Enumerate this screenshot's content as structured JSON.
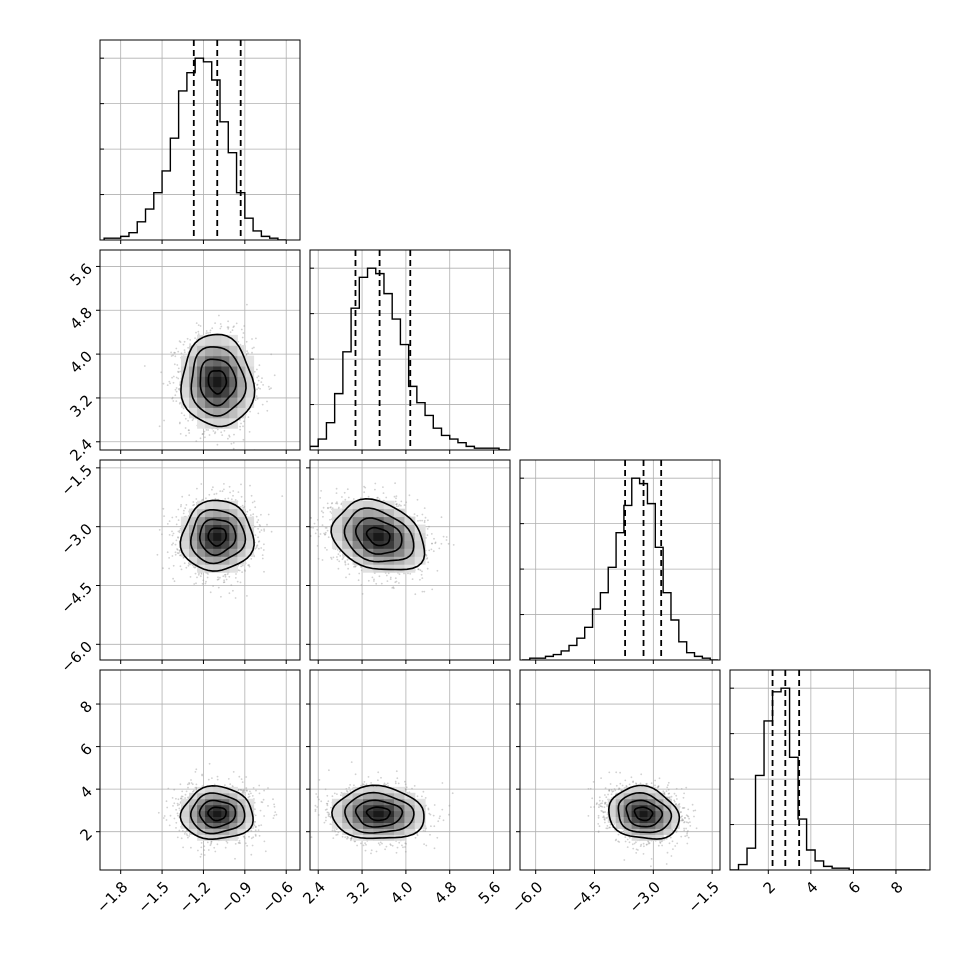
{
  "chart_data": {
    "type": "corner",
    "parameters": [
      {
        "range": [
          -1.95,
          -0.5
        ],
        "ticks": [
          -1.8,
          -1.5,
          -1.2,
          -0.9,
          -0.6
        ],
        "tick_labels": [
          "−1.8",
          "−1.5",
          "−1.2",
          "−0.9",
          "−0.6"
        ],
        "quantiles": [
          -1.27,
          -1.1,
          -0.93
        ],
        "hist_bins": [
          -1.92,
          -1.86,
          -1.8,
          -1.74,
          -1.68,
          -1.62,
          -1.56,
          -1.5,
          -1.44,
          -1.38,
          -1.32,
          -1.26,
          -1.2,
          -1.14,
          -1.08,
          -1.02,
          -0.96,
          -0.9,
          -0.84,
          -0.78,
          -0.72,
          -0.66,
          -0.6
        ],
        "hist_density": [
          0.01,
          0.01,
          0.02,
          0.04,
          0.1,
          0.17,
          0.26,
          0.38,
          0.56,
          0.82,
          0.92,
          1.0,
          0.98,
          0.88,
          0.65,
          0.48,
          0.26,
          0.12,
          0.05,
          0.02,
          0.01,
          0.0
        ],
        "center": -1.1,
        "sigma": 0.13
      },
      {
        "range": [
          2.25,
          5.9
        ],
        "ticks": [
          2.4,
          3.2,
          4.0,
          4.8,
          5.6
        ],
        "tick_labels": [
          "2.4",
          "3.2",
          "4.0",
          "4.8",
          "5.6"
        ],
        "quantiles": [
          3.08,
          3.52,
          4.08
        ],
        "hist_bins": [
          2.25,
          2.4,
          2.55,
          2.7,
          2.85,
          3.0,
          3.15,
          3.3,
          3.45,
          3.6,
          3.75,
          3.9,
          4.05,
          4.2,
          4.35,
          4.5,
          4.65,
          4.8,
          4.95,
          5.1,
          5.25,
          5.4,
          5.55,
          5.7,
          5.85
        ],
        "hist_density": [
          0.02,
          0.06,
          0.15,
          0.31,
          0.54,
          0.78,
          0.95,
          1.0,
          0.97,
          0.86,
          0.72,
          0.58,
          0.35,
          0.26,
          0.19,
          0.12,
          0.08,
          0.06,
          0.04,
          0.02,
          0.01,
          0.01,
          0.01,
          0.0
        ],
        "center": 3.5,
        "sigma": 0.42
      },
      {
        "range": [
          -6.4,
          -1.3
        ],
        "ticks": [
          -6.0,
          -4.5,
          -3.0,
          -1.5
        ],
        "tick_labels": [
          "−6.0",
          "−4.5",
          "−3.0",
          "−1.5"
        ],
        "quantiles": [
          -3.72,
          -3.25,
          -2.8
        ],
        "hist_bins": [
          -6.35,
          -6.15,
          -5.95,
          -5.75,
          -5.55,
          -5.35,
          -5.15,
          -4.95,
          -4.75,
          -4.55,
          -4.35,
          -4.15,
          -3.95,
          -3.75,
          -3.55,
          -3.35,
          -3.15,
          -2.95,
          -2.75,
          -2.55,
          -2.35,
          -2.15,
          -1.95,
          -1.75,
          -1.55,
          -1.35
        ],
        "hist_density": [
          0.0,
          0.01,
          0.01,
          0.02,
          0.03,
          0.05,
          0.08,
          0.12,
          0.18,
          0.28,
          0.37,
          0.51,
          0.7,
          0.85,
          1.0,
          0.97,
          0.86,
          0.62,
          0.37,
          0.22,
          0.1,
          0.04,
          0.02,
          0.01,
          0.0
        ],
        "center": -3.25,
        "sigma": 0.45
      },
      {
        "range": [
          0.2,
          9.6
        ],
        "ticks": [
          2,
          4,
          6,
          8
        ],
        "tick_labels": [
          "2",
          "4",
          "6",
          "8"
        ],
        "quantiles": [
          2.2,
          2.8,
          3.45
        ],
        "hist_bins": [
          0.2,
          0.6,
          1.0,
          1.4,
          1.8,
          2.2,
          2.6,
          3.0,
          3.4,
          3.8,
          4.2,
          4.6,
          5.0,
          5.4,
          5.8,
          6.2,
          6.6,
          7.0,
          7.4,
          7.8,
          8.2,
          8.6,
          9.0,
          9.4
        ],
        "hist_density": [
          0.0,
          0.03,
          0.12,
          0.52,
          0.82,
          0.98,
          1.0,
          0.62,
          0.28,
          0.11,
          0.05,
          0.02,
          0.01,
          0.01,
          0.0,
          0.0,
          0.0,
          0.0,
          0.0,
          0.0,
          0.0,
          0.0,
          0.0
        ],
        "center": 2.85,
        "sigma": 0.62
      }
    ],
    "correlations": [
      [
        1.0,
        -0.05,
        0.03,
        0.0
      ],
      [
        -0.05,
        1.0,
        -0.25,
        -0.05
      ],
      [
        0.03,
        -0.25,
        1.0,
        -0.15
      ],
      [
        0.0,
        -0.05,
        -0.15,
        1.0
      ]
    ],
    "contour_sigma_levels": [
      0.5,
      1.0,
      1.5,
      2.0
    ],
    "grid": true,
    "samples_shown": true
  }
}
